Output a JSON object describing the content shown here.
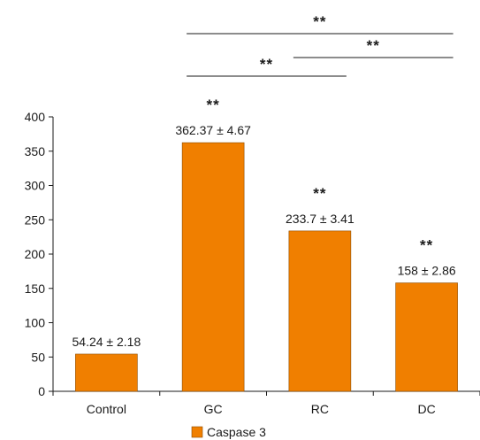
{
  "chart_data": {
    "type": "bar",
    "categories": [
      "Control",
      "GC",
      "RC",
      "DC"
    ],
    "series": [
      {
        "name": "Caspase 3",
        "values": [
          54.24,
          362.37,
          233.7,
          158
        ]
      }
    ],
    "data_labels": [
      "54.24 ± 2.18",
      "362.37 ± 4.67",
      "233.7 ± 3.41",
      "158 ± 2.86"
    ],
    "bar_significance": [
      "",
      "**",
      "**",
      "**"
    ],
    "yticks": [
      "0",
      "50",
      "100",
      "150",
      "200",
      "250",
      "300",
      "350",
      "400"
    ],
    "ylim": [
      0,
      400
    ],
    "xlabel": "",
    "ylabel": "",
    "title": "",
    "comparisons": [
      {
        "from": "GC",
        "to": "DC",
        "label": "**"
      },
      {
        "from": "RC",
        "to": "DC",
        "label": "**"
      },
      {
        "from": "GC",
        "to": "RC",
        "label": "**"
      }
    ],
    "legend": {
      "position": "bottom",
      "label": "Caspase 3"
    },
    "colors": {
      "bar": "#F07F00",
      "bar_stroke": "#8a4a00",
      "axis": "#1a1a1a"
    },
    "grid": false
  }
}
